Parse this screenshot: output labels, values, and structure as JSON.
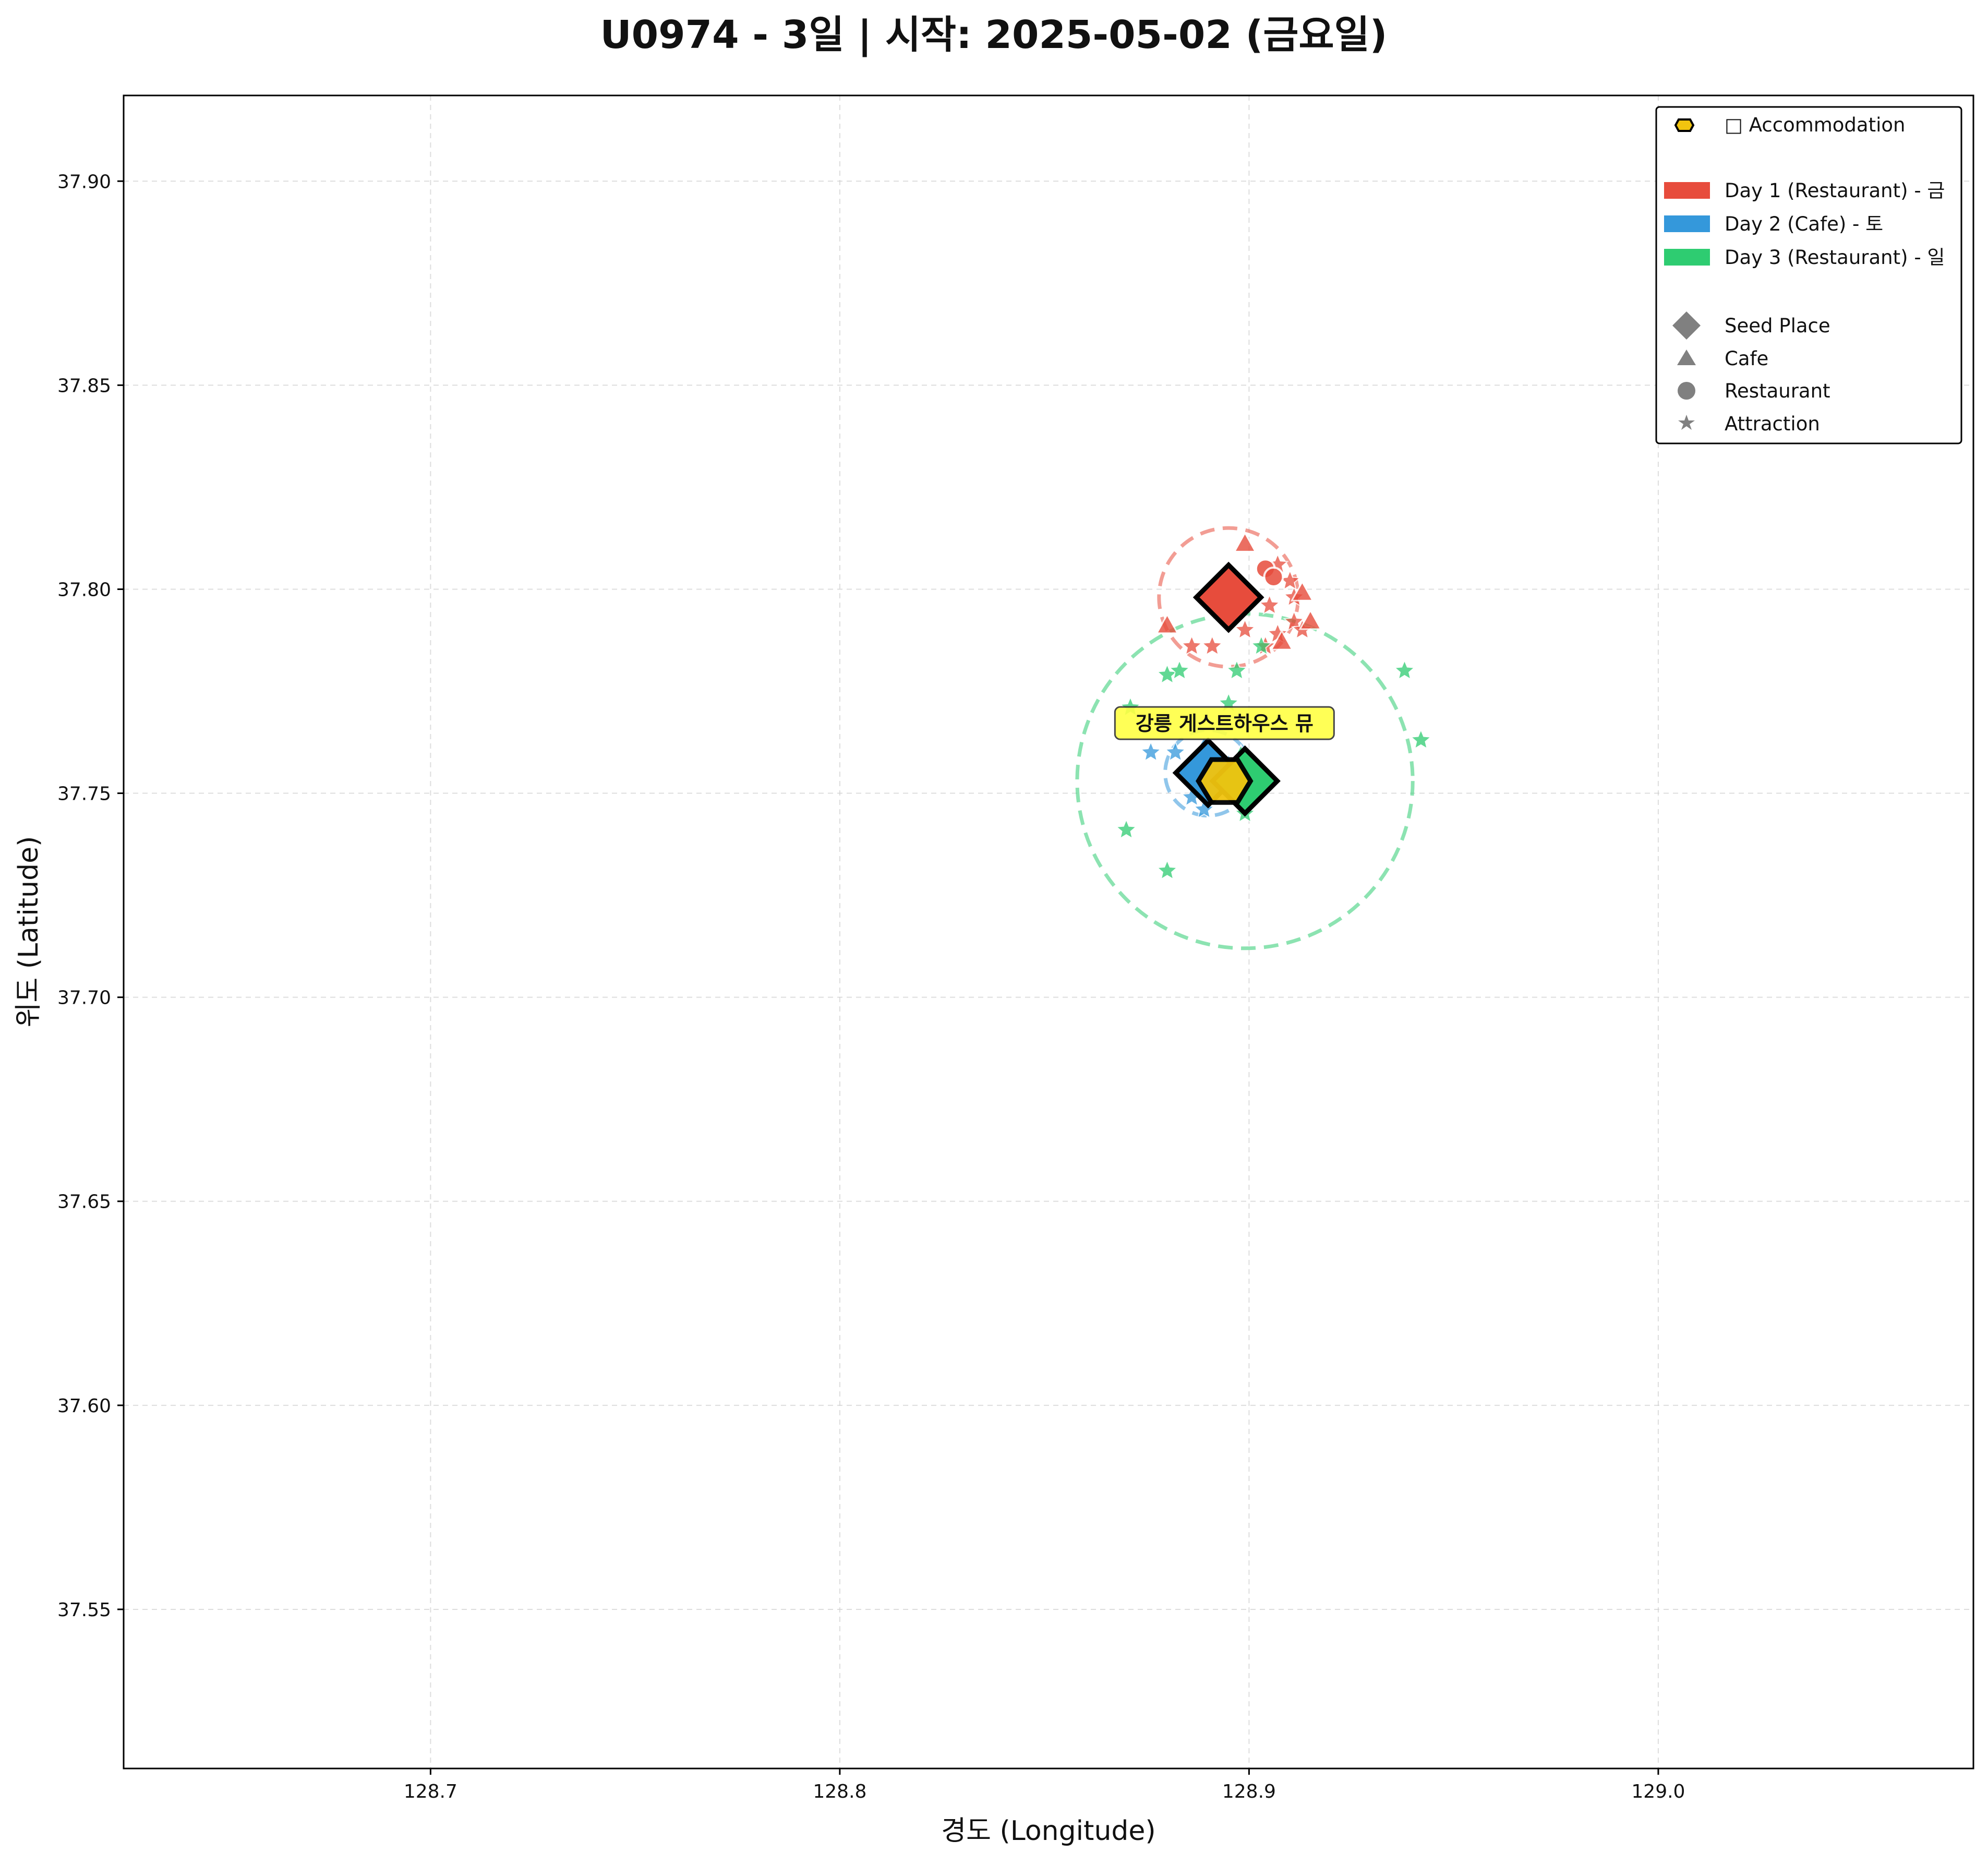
{
  "chart_data": {
    "type": "scatter",
    "title": "U0974 - 3일 | 시작: 2025-05-02 (금요일)",
    "xlabel": "경도 (Longitude)",
    "ylabel": "위도 (Latitude)",
    "xlim": [
      128.625,
      129.077
    ],
    "ylim": [
      37.511,
      37.921
    ],
    "xticks": [
      "128.7",
      "128.8",
      "128.9",
      "129.0"
    ],
    "yticks": [
      "37.55",
      "37.60",
      "37.65",
      "37.70",
      "37.75",
      "37.80",
      "37.85",
      "37.90"
    ],
    "grid": true,
    "legend_position": "top-right",
    "legend": {
      "accommodation": "□ Accommodation",
      "days": [
        "Day 1 (Restaurant) - 금",
        "Day 2 (Cafe) - 토",
        "Day 3 (Restaurant) - 일"
      ],
      "markers": [
        "Seed Place",
        "Cafe",
        "Restaurant",
        "Attraction"
      ]
    },
    "colors": {
      "day1": "#E74C3C",
      "day2": "#3498DB",
      "day3": "#2ECC71",
      "accommodation": "#F1C40F",
      "annotation_bg": "#FFFF44",
      "legend_marker": "#808080"
    },
    "accommodation": {
      "name": "강릉 게스트하우스 뮤",
      "lon": 128.894,
      "lat": 37.753
    },
    "series": [
      {
        "name": "Day 1 (Restaurant) - 금",
        "color": "#E74C3C",
        "radius_deg": 0.017,
        "seed": {
          "lon": 128.895,
          "lat": 37.798
        },
        "cafes": [
          [
            128.899,
            37.811
          ],
          [
            128.88,
            37.791
          ],
          [
            128.913,
            37.799
          ],
          [
            128.915,
            37.792
          ],
          [
            128.908,
            37.787
          ]
        ],
        "restaurants": [
          [
            128.904,
            37.805
          ],
          [
            128.906,
            37.803
          ]
        ],
        "attractions": [
          [
            128.886,
            37.786
          ],
          [
            128.891,
            37.786
          ],
          [
            128.899,
            37.79
          ],
          [
            128.904,
            37.786
          ],
          [
            128.907,
            37.789
          ],
          [
            128.911,
            37.792
          ],
          [
            128.911,
            37.798
          ],
          [
            128.91,
            37.802
          ],
          [
            128.907,
            37.806
          ],
          [
            128.913,
            37.79
          ],
          [
            128.905,
            37.796
          ]
        ]
      },
      {
        "name": "Day 2 (Cafe) - 토",
        "color": "#3498DB",
        "radius_deg": 0.0105,
        "seed": {
          "lon": 128.89,
          "lat": 37.755
        },
        "cafes": [
          [
            128.889,
            37.761
          ]
        ],
        "restaurants": [],
        "attractions": [
          [
            128.876,
            37.76
          ],
          [
            128.882,
            37.76
          ],
          [
            128.886,
            37.749
          ],
          [
            128.895,
            37.757
          ],
          [
            128.889,
            37.746
          ]
        ]
      },
      {
        "name": "Day 3 (Restaurant) - 일",
        "color": "#2ECC71",
        "radius_deg": 0.041,
        "seed": {
          "lon": 128.899,
          "lat": 37.753
        },
        "cafes": [
          [
            128.898,
            37.759
          ]
        ],
        "restaurants": [],
        "attractions": [
          [
            128.88,
            37.779
          ],
          [
            128.883,
            37.78
          ],
          [
            128.897,
            37.78
          ],
          [
            128.895,
            37.772
          ],
          [
            128.871,
            37.771
          ],
          [
            128.87,
            37.741
          ],
          [
            128.88,
            37.731
          ],
          [
            128.899,
            37.745
          ],
          [
            128.938,
            37.78
          ],
          [
            128.942,
            37.763
          ],
          [
            128.903,
            37.786
          ]
        ]
      }
    ]
  }
}
